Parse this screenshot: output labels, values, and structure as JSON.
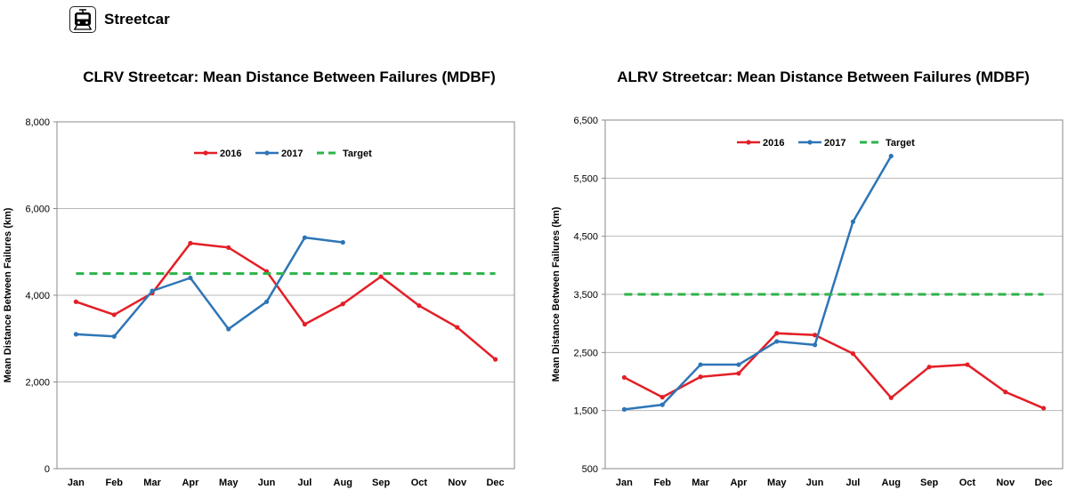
{
  "header": {
    "title": "Streetcar",
    "icon": "streetcar-icon"
  },
  "chart_data": [
    {
      "type": "line",
      "title": "CLRV Streetcar: Mean Distance Between Failures (MDBF)",
      "xlabel": "",
      "ylabel": "Mean Distance Between Failures (km)",
      "categories": [
        "Jan",
        "Feb",
        "Mar",
        "Apr",
        "May",
        "Jun",
        "Jul",
        "Aug",
        "Sep",
        "Oct",
        "Nov",
        "Dec"
      ],
      "ylim": [
        0,
        8000
      ],
      "yticks": [
        0,
        2000,
        4000,
        6000,
        8000
      ],
      "ytick_labels": [
        "0",
        "2,000",
        "4,000",
        "6,000",
        "8,000"
      ],
      "grid": true,
      "legend_position": "top-center",
      "series": [
        {
          "name": "2016",
          "color": "#e41e26",
          "style": "solid",
          "values": [
            3850,
            3550,
            4050,
            5200,
            5100,
            4550,
            3330,
            3800,
            4430,
            3760,
            3260,
            2520
          ]
        },
        {
          "name": "2017",
          "color": "#2e75b6",
          "style": "solid",
          "values": [
            3100,
            3050,
            4100,
            4400,
            3220,
            3850,
            5330,
            5220,
            null,
            null,
            null,
            null
          ]
        },
        {
          "name": "Target",
          "color": "#2db34a",
          "style": "dashed",
          "values": [
            4500,
            4500,
            4500,
            4500,
            4500,
            4500,
            4500,
            4500,
            4500,
            4500,
            4500,
            4500
          ]
        }
      ]
    },
    {
      "type": "line",
      "title": "ALRV Streetcar: Mean Distance Between Failures (MDBF)",
      "xlabel": "",
      "ylabel": "Mean Distance Between Failures (km)",
      "categories": [
        "Jan",
        "Feb",
        "Mar",
        "Apr",
        "May",
        "Jun",
        "Jul",
        "Aug",
        "Sep",
        "Oct",
        "Nov",
        "Dec"
      ],
      "ylim": [
        500,
        6500
      ],
      "yticks": [
        500,
        1500,
        2500,
        3500,
        4500,
        5500,
        6500
      ],
      "ytick_labels": [
        "500",
        "1,500",
        "2,500",
        "3,500",
        "4,500",
        "5,500",
        "6,500"
      ],
      "grid": true,
      "legend_position": "top-center",
      "series": [
        {
          "name": "2016",
          "color": "#e41e26",
          "style": "solid",
          "values": [
            2070,
            1730,
            2080,
            2140,
            2830,
            2800,
            2480,
            1720,
            2250,
            2290,
            1820,
            1540
          ]
        },
        {
          "name": "2017",
          "color": "#2e75b6",
          "style": "solid",
          "values": [
            1520,
            1600,
            2290,
            2290,
            2690,
            2630,
            4750,
            5880,
            null,
            null,
            null,
            null
          ]
        },
        {
          "name": "Target",
          "color": "#2db34a",
          "style": "dashed",
          "values": [
            3500,
            3500,
            3500,
            3500,
            3500,
            3500,
            3500,
            3500,
            3500,
            3500,
            3500,
            3500
          ]
        }
      ]
    }
  ]
}
